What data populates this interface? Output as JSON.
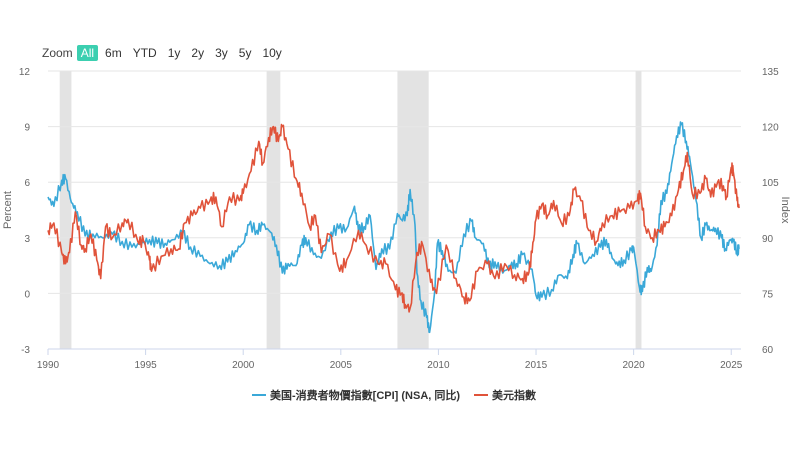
{
  "zoom": {
    "label": "Zoom",
    "buttons": [
      "All",
      "6m",
      "YTD",
      "1y",
      "2y",
      "3y",
      "5y",
      "10y"
    ],
    "active": "All"
  },
  "chart_data": {
    "type": "line",
    "x_axis": {
      "range": [
        1990,
        2025.5
      ],
      "ticks": [
        "1990",
        "1995",
        "2000",
        "2005",
        "2010",
        "2015",
        "2020",
        "2025"
      ]
    },
    "y_left": {
      "label": "Percent",
      "range": [
        -3,
        12
      ],
      "ticks": [
        "-3",
        "0",
        "3",
        "6",
        "9",
        "12"
      ]
    },
    "y_right": {
      "label": "Index",
      "range": [
        60,
        135
      ],
      "ticks": [
        "60",
        "75",
        "90",
        "105",
        "120",
        "135"
      ]
    },
    "grid": true,
    "legend_position": "bottom-center",
    "recessions": [
      [
        1990.6,
        1991.2
      ],
      [
        2001.2,
        2001.9
      ],
      [
        2007.9,
        2009.5
      ],
      [
        2020.1,
        2020.4
      ]
    ],
    "series": [
      {
        "name": "美国-消费者物價指數[CPI] (NSA, 同比)",
        "axis": "left",
        "color": "#3aa8d8",
        "points": [
          [
            1990.0,
            5.2
          ],
          [
            1990.3,
            4.7
          ],
          [
            1990.7,
            6.1
          ],
          [
            1990.9,
            6.2
          ],
          [
            1991.2,
            4.9
          ],
          [
            1991.5,
            4.4
          ],
          [
            1991.9,
            3.1
          ],
          [
            1992.3,
            3.2
          ],
          [
            1992.8,
            3.0
          ],
          [
            1993.3,
            3.2
          ],
          [
            1993.8,
            2.8
          ],
          [
            1994.3,
            2.5
          ],
          [
            1994.8,
            2.7
          ],
          [
            1995.2,
            2.9
          ],
          [
            1995.6,
            2.7
          ],
          [
            1996.0,
            2.7
          ],
          [
            1996.4,
            2.9
          ],
          [
            1996.9,
            3.3
          ],
          [
            1997.3,
            2.5
          ],
          [
            1997.8,
            2.0
          ],
          [
            1998.3,
            1.6
          ],
          [
            1998.8,
            1.5
          ],
          [
            1999.2,
            1.7
          ],
          [
            1999.6,
            2.3
          ],
          [
            2000.0,
            2.7
          ],
          [
            2000.3,
            3.7
          ],
          [
            2000.7,
            3.4
          ],
          [
            2001.0,
            3.7
          ],
          [
            2001.4,
            3.3
          ],
          [
            2001.7,
            2.6
          ],
          [
            2002.0,
            1.1
          ],
          [
            2002.3,
            1.6
          ],
          [
            2002.7,
            1.5
          ],
          [
            2003.0,
            2.6
          ],
          [
            2003.2,
            3.0
          ],
          [
            2003.6,
            2.1
          ],
          [
            2004.0,
            1.9
          ],
          [
            2004.5,
            3.3
          ],
          [
            2004.9,
            3.5
          ],
          [
            2005.3,
            3.5
          ],
          [
            2005.7,
            4.7
          ],
          [
            2005.9,
            3.4
          ],
          [
            2006.2,
            3.6
          ],
          [
            2006.5,
            4.2
          ],
          [
            2006.8,
            1.3
          ],
          [
            2007.1,
            2.4
          ],
          [
            2007.5,
            2.4
          ],
          [
            2007.9,
            4.3
          ],
          [
            2008.1,
            4.0
          ],
          [
            2008.4,
            4.2
          ],
          [
            2008.55,
            5.6
          ],
          [
            2008.8,
            3.7
          ],
          [
            2008.9,
            1.1
          ],
          [
            2009.1,
            -0.4
          ],
          [
            2009.4,
            -1.3
          ],
          [
            2009.55,
            -2.1
          ],
          [
            2009.8,
            0.0
          ],
          [
            2009.95,
            2.7
          ],
          [
            2010.2,
            2.3
          ],
          [
            2010.5,
            1.2
          ],
          [
            2010.9,
            1.1
          ],
          [
            2011.3,
            3.2
          ],
          [
            2011.7,
            3.9
          ],
          [
            2011.9,
            3.0
          ],
          [
            2012.3,
            2.7
          ],
          [
            2012.6,
            1.4
          ],
          [
            2012.9,
            1.7
          ],
          [
            2013.3,
            1.1
          ],
          [
            2013.7,
            1.5
          ],
          [
            2014.0,
            1.6
          ],
          [
            2014.3,
            2.1
          ],
          [
            2014.8,
            1.3
          ],
          [
            2015.0,
            -0.1
          ],
          [
            2015.3,
            -0.2
          ],
          [
            2015.8,
            0.2
          ],
          [
            2016.2,
            1.0
          ],
          [
            2016.6,
            0.8
          ],
          [
            2016.9,
            2.1
          ],
          [
            2017.1,
            2.7
          ],
          [
            2017.5,
            1.6
          ],
          [
            2017.9,
            2.1
          ],
          [
            2018.3,
            2.5
          ],
          [
            2018.6,
            2.9
          ],
          [
            2018.9,
            1.9
          ],
          [
            2019.2,
            1.5
          ],
          [
            2019.5,
            1.8
          ],
          [
            2019.9,
            2.3
          ],
          [
            2020.0,
            2.5
          ],
          [
            2020.3,
            0.3
          ],
          [
            2020.45,
            0.1
          ],
          [
            2020.7,
            1.4
          ],
          [
            2020.9,
            1.2
          ],
          [
            2021.2,
            2.6
          ],
          [
            2021.4,
            5.0
          ],
          [
            2021.7,
            5.4
          ],
          [
            2021.95,
            7.0
          ],
          [
            2022.2,
            8.5
          ],
          [
            2022.45,
            9.1
          ],
          [
            2022.7,
            8.2
          ],
          [
            2022.9,
            7.1
          ],
          [
            2023.2,
            5.0
          ],
          [
            2023.45,
            3.0
          ],
          [
            2023.7,
            3.7
          ],
          [
            2023.95,
            3.4
          ],
          [
            2024.2,
            3.5
          ],
          [
            2024.5,
            3.0
          ],
          [
            2024.7,
            2.4
          ],
          [
            2024.95,
            2.9
          ],
          [
            2025.1,
            2.8
          ],
          [
            2025.3,
            2.3
          ],
          [
            2025.4,
            2.4
          ]
        ]
      },
      {
        "name": "美元指數",
        "axis": "right",
        "color": "#e0533a",
        "points": [
          [
            1990.0,
            92
          ],
          [
            1990.3,
            94
          ],
          [
            1990.7,
            86
          ],
          [
            1990.9,
            83
          ],
          [
            1991.1,
            86
          ],
          [
            1991.4,
            97
          ],
          [
            1991.7,
            88
          ],
          [
            1991.9,
            87
          ],
          [
            1992.2,
            91
          ],
          [
            1992.5,
            84
          ],
          [
            1992.7,
            79
          ],
          [
            1992.95,
            93
          ],
          [
            1993.3,
            90
          ],
          [
            1993.8,
            94
          ],
          [
            1994.1,
            95
          ],
          [
            1994.6,
            89
          ],
          [
            1994.9,
            89
          ],
          [
            1995.2,
            84
          ],
          [
            1995.3,
            81
          ],
          [
            1995.8,
            85
          ],
          [
            1996.3,
            87
          ],
          [
            1996.7,
            87
          ],
          [
            1997.0,
            94
          ],
          [
            1997.4,
            96
          ],
          [
            1997.8,
            98
          ],
          [
            1998.3,
            100
          ],
          [
            1998.6,
            101
          ],
          [
            1998.9,
            93
          ],
          [
            1999.3,
            101
          ],
          [
            1999.8,
            100
          ],
          [
            2000.0,
            102
          ],
          [
            2000.4,
            108
          ],
          [
            2000.8,
            116
          ],
          [
            2001.0,
            110
          ],
          [
            2001.3,
            117
          ],
          [
            2001.55,
            120
          ],
          [
            2001.8,
            116
          ],
          [
            2002.0,
            120
          ],
          [
            2002.3,
            114
          ],
          [
            2002.7,
            106
          ],
          [
            2003.0,
            102
          ],
          [
            2003.4,
            93
          ],
          [
            2003.7,
            96
          ],
          [
            2004.0,
            86
          ],
          [
            2004.4,
            91
          ],
          [
            2004.95,
            81
          ],
          [
            2005.3,
            84
          ],
          [
            2005.9,
            92
          ],
          [
            2006.3,
            88
          ],
          [
            2006.9,
            83
          ],
          [
            2007.3,
            83
          ],
          [
            2007.8,
            76
          ],
          [
            2008.1,
            75
          ],
          [
            2008.3,
            72
          ],
          [
            2008.55,
            71
          ],
          [
            2008.9,
            86
          ],
          [
            2009.2,
            88
          ],
          [
            2009.6,
            78
          ],
          [
            2009.9,
            75
          ],
          [
            2010.4,
            88
          ],
          [
            2010.9,
            79
          ],
          [
            2011.3,
            74
          ],
          [
            2011.6,
            73
          ],
          [
            2012.0,
            81
          ],
          [
            2012.5,
            83
          ],
          [
            2012.9,
            79
          ],
          [
            2013.4,
            83
          ],
          [
            2013.9,
            80
          ],
          [
            2014.3,
            79
          ],
          [
            2014.6,
            80
          ],
          [
            2014.8,
            86
          ],
          [
            2015.0,
            95
          ],
          [
            2015.3,
            99
          ],
          [
            2015.6,
            96
          ],
          [
            2015.9,
            100
          ],
          [
            2016.3,
            94
          ],
          [
            2016.7,
            96
          ],
          [
            2016.95,
            103
          ],
          [
            2017.3,
            100
          ],
          [
            2017.7,
            92
          ],
          [
            2018.1,
            89
          ],
          [
            2018.4,
            94
          ],
          [
            2018.9,
            96
          ],
          [
            2019.3,
            97
          ],
          [
            2019.8,
            98
          ],
          [
            2020.2,
            100
          ],
          [
            2020.35,
            102
          ],
          [
            2020.6,
            93
          ],
          [
            2020.95,
            90
          ],
          [
            2021.3,
            92
          ],
          [
            2021.6,
            93
          ],
          [
            2021.95,
            96
          ],
          [
            2022.3,
            103
          ],
          [
            2022.55,
            108
          ],
          [
            2022.75,
            113
          ],
          [
            2023.0,
            102
          ],
          [
            2023.4,
            102
          ],
          [
            2023.7,
            106
          ],
          [
            2023.95,
            101
          ],
          [
            2024.3,
            105
          ],
          [
            2024.6,
            104
          ],
          [
            2024.75,
            101
          ],
          [
            2025.0,
            109
          ],
          [
            2025.1,
            108
          ],
          [
            2025.3,
            100
          ],
          [
            2025.4,
            98
          ]
        ]
      }
    ]
  }
}
